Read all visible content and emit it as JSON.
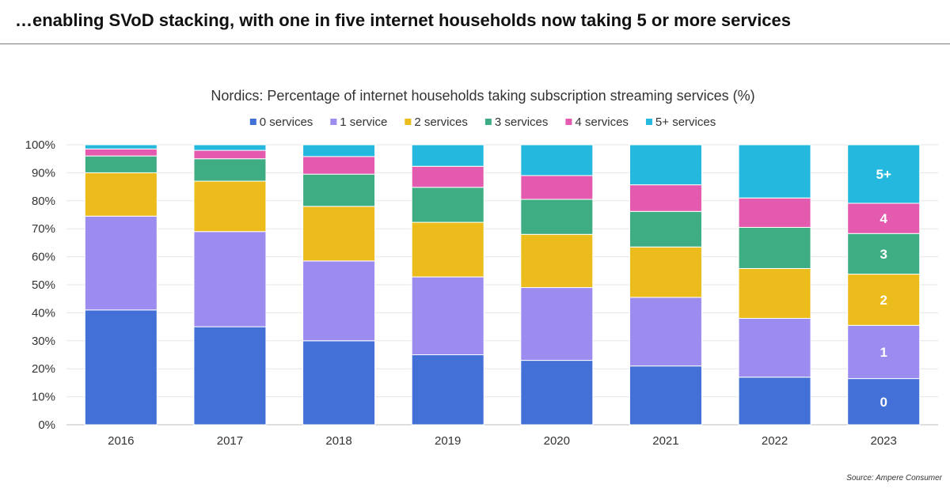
{
  "headline": "…enabling SVoD stacking, with one in five internet households now taking 5 or more services",
  "source": "Source: Ampere Consumer",
  "chart_data": {
    "type": "bar",
    "stacked": true,
    "title": "Nordics: Percentage of internet households taking subscription streaming services (%)",
    "xlabel": "",
    "ylabel": "",
    "ylim": [
      0,
      100
    ],
    "y_ticks": [
      "0%",
      "10%",
      "20%",
      "30%",
      "40%",
      "50%",
      "60%",
      "70%",
      "80%",
      "90%",
      "100%"
    ],
    "legend_position": "top",
    "categories": [
      "2016",
      "2017",
      "2018",
      "2019",
      "2020",
      "2021",
      "2022",
      "2023"
    ],
    "series": [
      {
        "name": "0 services",
        "color": "#4270d6",
        "values": [
          41,
          35,
          30,
          25,
          23,
          21,
          17,
          16.5
        ]
      },
      {
        "name": "1 service",
        "color": "#9c8cf0",
        "values": [
          33.5,
          34,
          28.5,
          27.8,
          26,
          24.5,
          21,
          19
        ]
      },
      {
        "name": "2 services",
        "color": "#ecbc1c",
        "values": [
          15.5,
          18,
          19.5,
          19.5,
          19,
          18,
          17.8,
          18.3
        ]
      },
      {
        "name": "3 services",
        "color": "#3fad84",
        "values": [
          6,
          8,
          11.5,
          12.5,
          12.5,
          12.7,
          14.7,
          14.5
        ]
      },
      {
        "name": "4 services",
        "color": "#e35aae",
        "values": [
          2.5,
          3,
          6.3,
          7.5,
          8.5,
          9.5,
          10.5,
          10.8
        ]
      },
      {
        "name": "5+ services",
        "color": "#25b8de",
        "values": [
          1.5,
          2,
          4.2,
          7.7,
          11,
          14.3,
          19,
          20.9
        ]
      }
    ],
    "segment_labels": {
      "category": "2023",
      "labels": [
        "0",
        "1",
        "2",
        "3",
        "4",
        "5+"
      ]
    }
  }
}
